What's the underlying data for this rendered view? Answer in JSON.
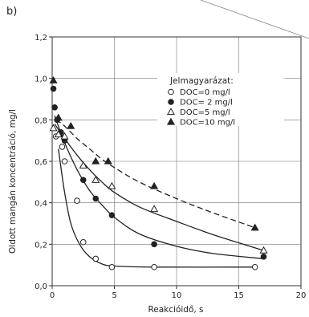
{
  "chart_data": {
    "type": "scatter",
    "panel_label": "b)",
    "xlabel": "Reakcióidő, s",
    "ylabel": "Oldott mangán koncentráció, mg/l",
    "xlim": [
      0,
      20
    ],
    "ylim": [
      0,
      1.2
    ],
    "x_ticks": [
      0,
      5,
      10,
      15,
      20
    ],
    "y_ticks": [
      0,
      0.2,
      0.4,
      0.6,
      0.8,
      1.0,
      1.2
    ],
    "x_tick_labels": [
      "0",
      "5",
      "10",
      "15",
      "20"
    ],
    "y_tick_labels": [
      "0,0",
      "0,2",
      "0,4",
      "0,6",
      "0,8",
      "1,0",
      "1,2"
    ],
    "grid": true,
    "legend_title": "Jelmagyarázat:",
    "legend_position": "top-right",
    "series": [
      {
        "name": "DOC=0 mg/l",
        "marker": "circle-open",
        "x": [
          0.3,
          0.8,
          1.0,
          2.0,
          2.5,
          3.5,
          4.8,
          8.2,
          16.3
        ],
        "y": [
          0.72,
          0.67,
          0.6,
          0.41,
          0.21,
          0.13,
          0.09,
          0.09,
          0.09
        ],
        "curve": [
          [
            0.5,
            0.66
          ],
          [
            1.0,
            0.45
          ],
          [
            1.5,
            0.3
          ],
          [
            2.2,
            0.2
          ],
          [
            3.0,
            0.14
          ],
          [
            4.0,
            0.105
          ],
          [
            5.0,
            0.095
          ],
          [
            8.0,
            0.09
          ],
          [
            16.3,
            0.09
          ]
        ]
      },
      {
        "name": "DOC= 2 mg/l",
        "marker": "circle-filled",
        "x": [
          0.1,
          0.2,
          0.4,
          0.7,
          1.0,
          2.5,
          3.5,
          4.8,
          8.2,
          17.0
        ],
        "y": [
          0.95,
          0.86,
          0.8,
          0.74,
          0.7,
          0.51,
          0.42,
          0.34,
          0.2,
          0.14
        ],
        "curve": [
          [
            0.2,
            0.82
          ],
          [
            1.0,
            0.69
          ],
          [
            2.0,
            0.56
          ],
          [
            3.0,
            0.46
          ],
          [
            4.0,
            0.39
          ],
          [
            5.0,
            0.33
          ],
          [
            7.0,
            0.25
          ],
          [
            10.0,
            0.19
          ],
          [
            13.0,
            0.155
          ],
          [
            17.0,
            0.13
          ]
        ]
      },
      {
        "name": "DOC=5 mg/l",
        "marker": "triangle-open",
        "x": [
          0.1,
          0.5,
          1.0,
          2.5,
          3.5,
          4.8,
          8.2,
          17.0
        ],
        "y": [
          0.76,
          0.73,
          0.72,
          0.58,
          0.51,
          0.48,
          0.37,
          0.17
        ],
        "curve": [
          [
            0.2,
            0.78
          ],
          [
            1.0,
            0.71
          ],
          [
            2.0,
            0.63
          ],
          [
            3.0,
            0.56
          ],
          [
            4.0,
            0.5
          ],
          [
            5.0,
            0.45
          ],
          [
            7.0,
            0.38
          ],
          [
            10.0,
            0.31
          ],
          [
            13.0,
            0.245
          ],
          [
            17.0,
            0.17
          ]
        ]
      },
      {
        "name": "DOC=10 mg/l",
        "marker": "triangle-filled",
        "x": [
          0.1,
          0.5,
          1.5,
          3.5,
          4.5,
          8.2,
          16.3
        ],
        "y": [
          0.99,
          0.81,
          0.77,
          0.6,
          0.6,
          0.48,
          0.28
        ],
        "curve": [
          [
            0.3,
            0.8
          ],
          [
            1.0,
            0.77
          ],
          [
            2.0,
            0.71
          ],
          [
            3.0,
            0.66
          ],
          [
            4.0,
            0.61
          ],
          [
            5.0,
            0.57
          ],
          [
            7.0,
            0.5
          ],
          [
            10.0,
            0.42
          ],
          [
            13.0,
            0.35
          ],
          [
            16.3,
            0.28
          ]
        ]
      }
    ]
  }
}
